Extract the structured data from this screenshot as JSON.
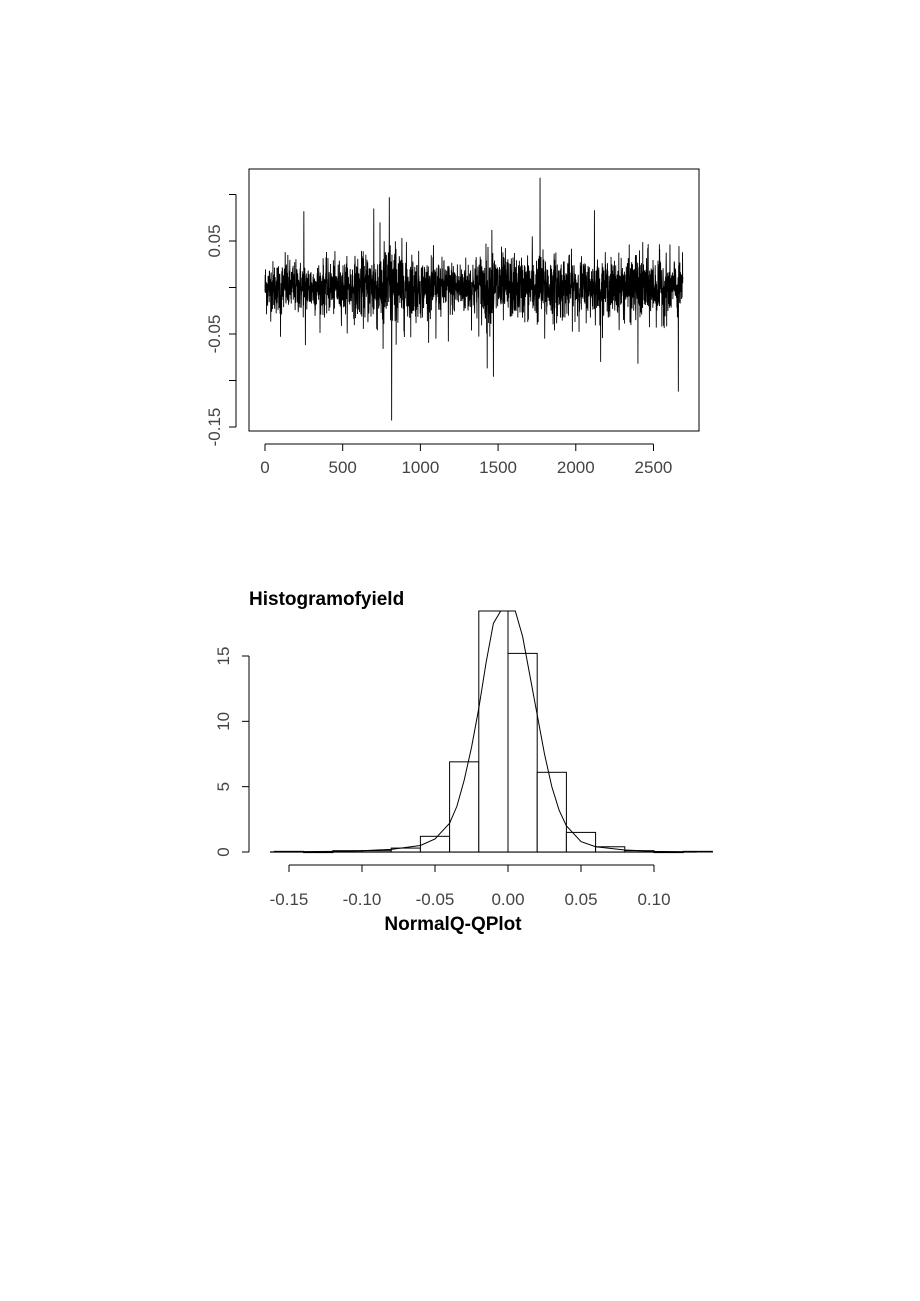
{
  "chart_data": [
    {
      "type": "line",
      "title": "",
      "xlabel": "",
      "ylabel": "",
      "xlim": [
        0,
        2700
      ],
      "ylim": [
        -0.15,
        0.1
      ],
      "x_ticks": [
        0,
        500,
        1000,
        1500,
        2000,
        2500
      ],
      "x_tick_labels": [
        "0",
        "500",
        "1000",
        "1500",
        "2000",
        "2500"
      ],
      "y_ticks": [
        -0.15,
        -0.05,
        0.05
      ],
      "y_tick_labels": [
        "-0.15",
        "-0.05",
        "0.05"
      ],
      "n_points": 2690,
      "spikes": [
        {
          "x": 100,
          "y": -0.053
        },
        {
          "x": 130,
          "y": 0.038
        },
        {
          "x": 250,
          "y": 0.082
        },
        {
          "x": 260,
          "y": -0.062
        },
        {
          "x": 700,
          "y": 0.085
        },
        {
          "x": 760,
          "y": -0.066
        },
        {
          "x": 800,
          "y": 0.097
        },
        {
          "x": 815,
          "y": -0.143
        },
        {
          "x": 1100,
          "y": -0.055
        },
        {
          "x": 1180,
          "y": -0.058
        },
        {
          "x": 1430,
          "y": -0.087
        },
        {
          "x": 1460,
          "y": 0.062
        },
        {
          "x": 1470,
          "y": -0.096
        },
        {
          "x": 1720,
          "y": 0.055
        },
        {
          "x": 1770,
          "y": 0.118
        },
        {
          "x": 1800,
          "y": -0.055
        },
        {
          "x": 2120,
          "y": 0.083
        },
        {
          "x": 2160,
          "y": -0.08
        },
        {
          "x": 2400,
          "y": -0.082
        },
        {
          "x": 2660,
          "y": -0.112
        },
        {
          "x": 2690,
          "y": -0.072
        }
      ]
    },
    {
      "type": "bar",
      "title": "Histogramofyield",
      "xlabel": "NormalQ-QPlot",
      "ylabel": "",
      "xlim": [
        -0.16,
        0.13
      ],
      "ylim": [
        0,
        18
      ],
      "x_ticks": [
        -0.15,
        -0.1,
        -0.05,
        0.0,
        0.05,
        0.1
      ],
      "x_tick_labels": [
        "-0.15",
        "-0.10",
        "-0.05",
        "0.00",
        "0.05",
        "0.10"
      ],
      "y_ticks": [
        0,
        5,
        10,
        15
      ],
      "y_tick_labels": [
        "0",
        "5",
        "10",
        "15"
      ],
      "bins": [
        {
          "x0": -0.16,
          "x1": -0.14,
          "value": 0.05
        },
        {
          "x0": -0.14,
          "x1": -0.12,
          "value": 0.0
        },
        {
          "x0": -0.12,
          "x1": -0.1,
          "value": 0.1
        },
        {
          "x0": -0.1,
          "x1": -0.08,
          "value": 0.1
        },
        {
          "x0": -0.08,
          "x1": -0.06,
          "value": 0.3
        },
        {
          "x0": -0.06,
          "x1": -0.04,
          "value": 1.2
        },
        {
          "x0": -0.04,
          "x1": -0.02,
          "value": 6.9
        },
        {
          "x0": -0.02,
          "x1": 0.0,
          "value": 18.5
        },
        {
          "x0": 0.0,
          "x1": 0.02,
          "value": 15.2
        },
        {
          "x0": 0.02,
          "x1": 0.04,
          "value": 6.1
        },
        {
          "x0": 0.04,
          "x1": 0.06,
          "value": 1.5
        },
        {
          "x0": 0.06,
          "x1": 0.08,
          "value": 0.4
        },
        {
          "x0": 0.08,
          "x1": 0.1,
          "value": 0.1
        },
        {
          "x0": 0.1,
          "x1": 0.12,
          "value": 0.0
        },
        {
          "x0": 0.12,
          "x1": 0.14,
          "value": 0.05
        }
      ],
      "density_curve": {
        "x": [
          -0.15,
          -0.12,
          -0.1,
          -0.08,
          -0.06,
          -0.05,
          -0.04,
          -0.035,
          -0.03,
          -0.025,
          -0.02,
          -0.015,
          -0.01,
          -0.005,
          0.0,
          0.005,
          0.01,
          0.015,
          0.02,
          0.025,
          0.03,
          0.035,
          0.04,
          0.05,
          0.06,
          0.08,
          0.1,
          0.12
        ],
        "y": [
          0.02,
          0.05,
          0.1,
          0.2,
          0.5,
          1.0,
          2.2,
          3.5,
          5.5,
          8.0,
          11.0,
          14.5,
          17.5,
          19.5,
          20.0,
          19.0,
          16.5,
          13.5,
          10.5,
          7.5,
          5.0,
          3.2,
          2.0,
          0.8,
          0.4,
          0.15,
          0.05,
          0.02
        ]
      }
    }
  ]
}
